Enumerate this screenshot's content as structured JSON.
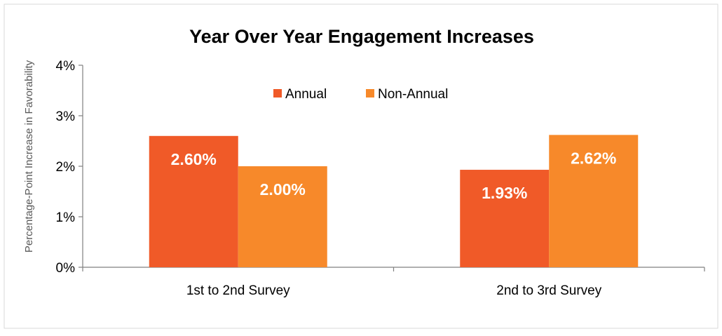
{
  "chart_data": {
    "type": "bar",
    "title": "Year Over Year Engagement Increases",
    "ylabel": "Percentage-Point Increase in Favorability",
    "xlabel": "",
    "categories": [
      "1st to 2nd Survey",
      "2nd to 3rd Survey"
    ],
    "series": [
      {
        "name": "Annual",
        "values": [
          2.6,
          1.93
        ],
        "labels": [
          "2.60%",
          "1.93%"
        ],
        "color": "#F05A28"
      },
      {
        "name": "Non-Annual",
        "values": [
          2.0,
          2.62
        ],
        "labels": [
          "2.00%",
          "2.62%"
        ],
        "color": "#F7892A"
      }
    ],
    "ylim": [
      0,
      4
    ],
    "yticks": [
      0,
      1,
      2,
      3,
      4
    ],
    "ytick_labels": [
      "0%",
      "1%",
      "2%",
      "3%",
      "4%"
    ],
    "legend_position": "top-center",
    "grid": false
  }
}
